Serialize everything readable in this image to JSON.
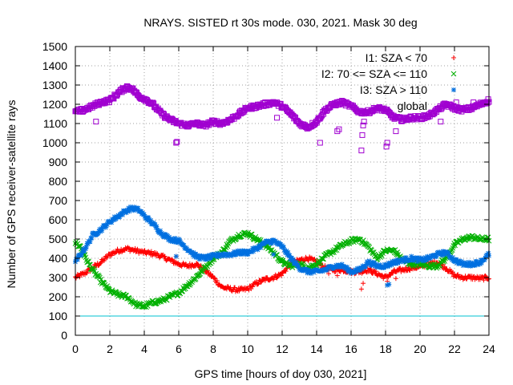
{
  "chart_data": {
    "type": "scatter",
    "title": "NRAYS. SISTED rt 30s mode. 030, 2021. Mask 30 deg",
    "xlabel": "GPS time [hours of doy 030, 2021]",
    "ylabel": "Number of GPS receiver-satellite rays",
    "xlim": [
      0,
      24
    ],
    "ylim": [
      0,
      1500
    ],
    "xticks": [
      0,
      2,
      4,
      6,
      8,
      10,
      12,
      14,
      16,
      18,
      20,
      22,
      24
    ],
    "xtick_labels": [
      "0",
      "2",
      "4",
      "6",
      "8",
      "10",
      "12",
      "14",
      "16",
      "18",
      "20",
      "22",
      "24"
    ],
    "yticks": [
      0,
      100,
      200,
      300,
      400,
      500,
      600,
      700,
      800,
      900,
      1000,
      1100,
      1200,
      1300,
      1400,
      1500
    ],
    "ytick_labels": [
      "0",
      "100",
      "200",
      "300",
      "400",
      "500",
      "600",
      "700",
      "800",
      "900",
      "1000",
      "1100",
      "1200",
      "1300",
      "1400",
      "1500"
    ],
    "grid": true,
    "legend_position": "top-right",
    "reference_line": {
      "y": 100,
      "color": "#00c0d0"
    },
    "series": [
      {
        "name": "I1: SZA < 70",
        "marker": "plus",
        "color": "#ff0000",
        "points": [
          [
            0,
            300
          ],
          [
            0.5,
            320
          ],
          [
            1,
            350
          ],
          [
            1.5,
            380
          ],
          [
            2,
            420
          ],
          [
            2.5,
            440
          ],
          [
            3,
            450
          ],
          [
            3.5,
            440
          ],
          [
            4,
            430
          ],
          [
            4.5,
            425
          ],
          [
            5,
            410
          ],
          [
            5.5,
            390
          ],
          [
            6,
            370
          ],
          [
            6.5,
            360
          ],
          [
            7,
            370
          ],
          [
            7.5,
            340
          ],
          [
            8,
            300
          ],
          [
            8.5,
            250
          ],
          [
            9,
            240
          ],
          [
            9.5,
            235
          ],
          [
            10,
            240
          ],
          [
            10.5,
            270
          ],
          [
            11,
            290
          ],
          [
            11.5,
            300
          ],
          [
            12,
            320
          ],
          [
            12.5,
            370
          ],
          [
            13,
            390
          ],
          [
            13.5,
            400
          ],
          [
            14,
            380
          ],
          [
            14.5,
            350
          ],
          [
            15,
            340
          ],
          [
            15.5,
            340
          ],
          [
            16,
            330
          ],
          [
            16.5,
            330
          ],
          [
            17,
            340
          ],
          [
            17.5,
            320
          ],
          [
            18,
            300
          ],
          [
            18.5,
            330
          ],
          [
            19,
            340
          ],
          [
            19.5,
            350
          ],
          [
            20,
            355
          ],
          [
            20.5,
            370
          ],
          [
            21,
            380
          ],
          [
            21.5,
            350
          ],
          [
            22,
            310
          ],
          [
            22.5,
            300
          ],
          [
            23,
            300
          ],
          [
            23.5,
            295
          ],
          [
            24,
            300
          ]
        ],
        "outliers": [
          [
            5.85,
            410
          ],
          [
            14.7,
            320
          ],
          [
            15.2,
            310
          ],
          [
            16.6,
            240
          ],
          [
            16.7,
            270
          ],
          [
            18.1,
            280
          ],
          [
            18.6,
            295
          ]
        ]
      },
      {
        "name": "I2: 70 <= SZA <= 110",
        "marker": "cross",
        "color": "#00b000",
        "points": [
          [
            0,
            480
          ],
          [
            0.3,
            460
          ],
          [
            0.6,
            400
          ],
          [
            1,
            340
          ],
          [
            1.5,
            280
          ],
          [
            2,
            230
          ],
          [
            2.5,
            210
          ],
          [
            3,
            200
          ],
          [
            3.5,
            160
          ],
          [
            4,
            150
          ],
          [
            4.5,
            170
          ],
          [
            5,
            180
          ],
          [
            5.5,
            200
          ],
          [
            6,
            220
          ],
          [
            6.5,
            260
          ],
          [
            7,
            300
          ],
          [
            7.5,
            350
          ],
          [
            8,
            400
          ],
          [
            8.5,
            430
          ],
          [
            9,
            490
          ],
          [
            9.5,
            520
          ],
          [
            10,
            530
          ],
          [
            10.5,
            500
          ],
          [
            11,
            470
          ],
          [
            11.5,
            430
          ],
          [
            12,
            380
          ],
          [
            12.5,
            360
          ],
          [
            13,
            370
          ],
          [
            13.5,
            350
          ],
          [
            14,
            370
          ],
          [
            14.5,
            410
          ],
          [
            15,
            440
          ],
          [
            15.5,
            470
          ],
          [
            16,
            490
          ],
          [
            16.5,
            500
          ],
          [
            17,
            460
          ],
          [
            17.5,
            400
          ],
          [
            18,
            440
          ],
          [
            18.5,
            440
          ],
          [
            19,
            390
          ],
          [
            19.5,
            370
          ],
          [
            20,
            370
          ],
          [
            20.5,
            360
          ],
          [
            21,
            360
          ],
          [
            21.5,
            400
          ],
          [
            22,
            470
          ],
          [
            22.5,
            500
          ],
          [
            23,
            510
          ],
          [
            23.5,
            500
          ],
          [
            24,
            500
          ]
        ]
      },
      {
        "name": "I3: SZA > 110",
        "marker": "star",
        "color": "#0070e0",
        "points": [
          [
            0,
            380
          ],
          [
            0.3,
            420
          ],
          [
            0.7,
            470
          ],
          [
            1,
            520
          ],
          [
            1.5,
            550
          ],
          [
            2,
            590
          ],
          [
            2.5,
            620
          ],
          [
            3,
            650
          ],
          [
            3.3,
            660
          ],
          [
            3.7,
            650
          ],
          [
            4,
            620
          ],
          [
            4.5,
            580
          ],
          [
            5,
            530
          ],
          [
            5.5,
            500
          ],
          [
            6,
            490
          ],
          [
            6.5,
            450
          ],
          [
            7,
            410
          ],
          [
            7.5,
            400
          ],
          [
            8,
            410
          ],
          [
            8.5,
            420
          ],
          [
            9,
            420
          ],
          [
            9.5,
            430
          ],
          [
            10,
            430
          ],
          [
            10.5,
            450
          ],
          [
            11,
            480
          ],
          [
            11.5,
            490
          ],
          [
            12,
            460
          ],
          [
            12.5,
            400
          ],
          [
            13,
            350
          ],
          [
            13.5,
            330
          ],
          [
            14,
            330
          ],
          [
            14.5,
            340
          ],
          [
            15,
            360
          ],
          [
            15.5,
            360
          ],
          [
            16,
            330
          ],
          [
            16.5,
            340
          ],
          [
            17,
            380
          ],
          [
            17.5,
            360
          ],
          [
            18,
            360
          ],
          [
            18.5,
            380
          ],
          [
            19,
            390
          ],
          [
            19.5,
            400
          ],
          [
            20,
            390
          ],
          [
            20.5,
            400
          ],
          [
            21,
            420
          ],
          [
            21.5,
            430
          ],
          [
            22,
            390
          ],
          [
            22.5,
            370
          ],
          [
            23,
            370
          ],
          [
            23.5,
            380
          ],
          [
            24,
            420
          ]
        ],
        "outliers": [
          [
            5.85,
            410
          ],
          [
            11.5,
            420
          ],
          [
            18.1,
            260
          ],
          [
            18.2,
            265
          ]
        ]
      },
      {
        "name": "global",
        "marker": "open-square",
        "color": "#a000d0",
        "points": [
          [
            0,
            1160
          ],
          [
            0.5,
            1170
          ],
          [
            1,
            1190
          ],
          [
            1.5,
            1210
          ],
          [
            2,
            1220
          ],
          [
            2.5,
            1260
          ],
          [
            3,
            1290
          ],
          [
            3.3,
            1280
          ],
          [
            3.7,
            1240
          ],
          [
            4,
            1230
          ],
          [
            4.5,
            1200
          ],
          [
            5,
            1150
          ],
          [
            5.5,
            1120
          ],
          [
            6,
            1100
          ],
          [
            6.5,
            1090
          ],
          [
            7,
            1100
          ],
          [
            7.5,
            1090
          ],
          [
            8,
            1110
          ],
          [
            8.5,
            1100
          ],
          [
            9,
            1120
          ],
          [
            9.5,
            1150
          ],
          [
            10,
            1180
          ],
          [
            10.5,
            1190
          ],
          [
            11,
            1200
          ],
          [
            11.5,
            1210
          ],
          [
            12,
            1190
          ],
          [
            12.5,
            1150
          ],
          [
            13,
            1100
          ],
          [
            13.5,
            1080
          ],
          [
            14,
            1110
          ],
          [
            14.5,
            1170
          ],
          [
            15,
            1200
          ],
          [
            15.5,
            1210
          ],
          [
            16,
            1190
          ],
          [
            16.5,
            1160
          ],
          [
            17,
            1160
          ],
          [
            17.5,
            1180
          ],
          [
            18,
            1170
          ],
          [
            18.5,
            1130
          ],
          [
            19,
            1120
          ],
          [
            19.5,
            1130
          ],
          [
            20,
            1130
          ],
          [
            20.5,
            1140
          ],
          [
            21,
            1170
          ],
          [
            21.5,
            1200
          ],
          [
            22,
            1180
          ],
          [
            22.5,
            1170
          ],
          [
            23,
            1180
          ],
          [
            23.5,
            1200
          ],
          [
            24,
            1220
          ]
        ],
        "outliers": [
          [
            1.2,
            1110
          ],
          [
            5.85,
            1000
          ],
          [
            5.9,
            1005
          ],
          [
            11.7,
            1130
          ],
          [
            14.2,
            1000
          ],
          [
            15.2,
            1060
          ],
          [
            15.3,
            1070
          ],
          [
            16.6,
            960
          ],
          [
            16.65,
            1040
          ],
          [
            16.7,
            1090
          ],
          [
            16.75,
            1110
          ],
          [
            18.05,
            980
          ],
          [
            18.1,
            1000
          ],
          [
            18.6,
            1060
          ],
          [
            21.2,
            1110
          ],
          [
            22.1,
            1210
          ],
          [
            23.1,
            1210
          ]
        ]
      }
    ]
  }
}
